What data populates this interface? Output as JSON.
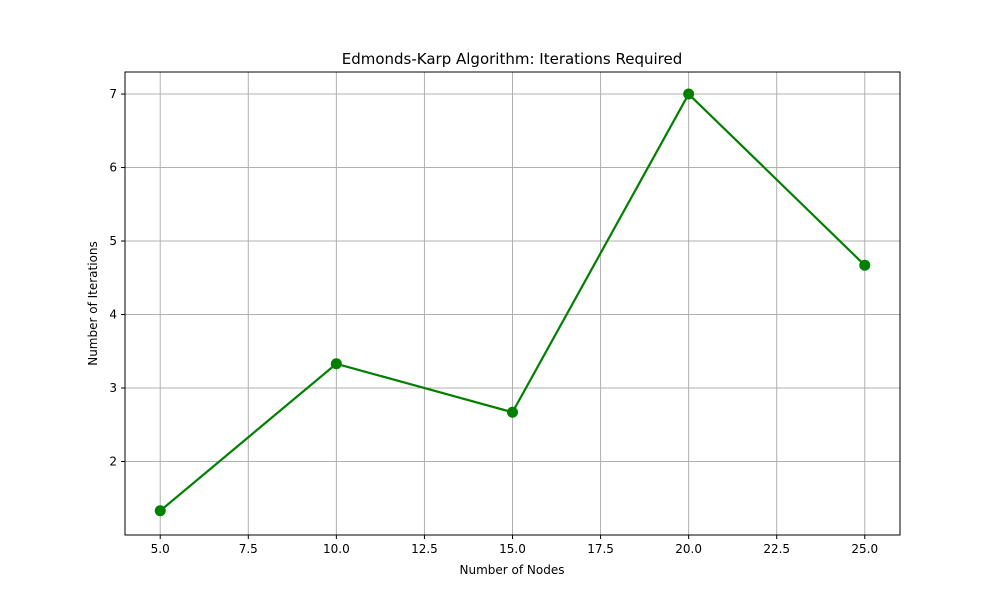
{
  "chart_data": {
    "type": "line",
    "title": "Edmonds-Karp Algorithm: Iterations Required",
    "xlabel": "Number of Nodes",
    "ylabel": "Number of Iterations",
    "x": [
      5,
      10,
      15,
      20,
      25
    ],
    "series": [
      {
        "values": [
          1.33,
          3.33,
          2.67,
          7.0,
          4.67
        ],
        "color": "#008000",
        "marker": "circle"
      }
    ],
    "xlim": [
      4,
      26
    ],
    "ylim": [
      1.0,
      7.3
    ],
    "xticks": [
      5.0,
      7.5,
      10.0,
      12.5,
      15.0,
      17.5,
      20.0,
      22.5,
      25.0
    ],
    "xtick_labels": [
      "5.0",
      "7.5",
      "10.0",
      "12.5",
      "15.0",
      "17.5",
      "20.0",
      "22.5",
      "25.0"
    ],
    "yticks": [
      2,
      3,
      4,
      5,
      6,
      7
    ],
    "ytick_labels": [
      "2",
      "3",
      "4",
      "5",
      "6",
      "7"
    ],
    "grid": true,
    "legend": "none"
  }
}
